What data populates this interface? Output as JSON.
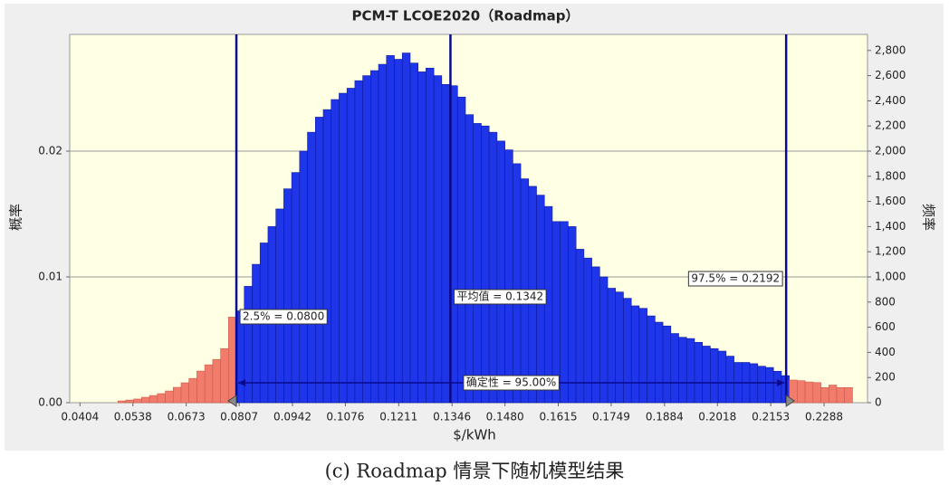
{
  "chart_data": {
    "type": "histogram",
    "title": "PCM-T LCOE2020（Roadmap）",
    "x_label": "$/kWh",
    "y_label": "概率",
    "y2_label": "频率",
    "caption": "(c) Roadmap 情景下随机模型结果",
    "axis": "y2",
    "bins": [
      0.05,
      0.052,
      0.054,
      0.056,
      0.058,
      0.06,
      0.062,
      0.064,
      0.066,
      0.068,
      0.07,
      0.072,
      0.074,
      0.076,
      0.078,
      0.08,
      0.082,
      0.084,
      0.086,
      0.088,
      0.09,
      0.092,
      0.094,
      0.096,
      0.098,
      0.1,
      0.102,
      0.104,
      0.106,
      0.108,
      0.11,
      0.112,
      0.114,
      0.116,
      0.118,
      0.12,
      0.122,
      0.124,
      0.126,
      0.128,
      0.13,
      0.132,
      0.134,
      0.136,
      0.138,
      0.14,
      0.142,
      0.144,
      0.146,
      0.148,
      0.15,
      0.152,
      0.154,
      0.156,
      0.158,
      0.16,
      0.162,
      0.164,
      0.166,
      0.168,
      0.17,
      0.172,
      0.174,
      0.176,
      0.178,
      0.18,
      0.182,
      0.184,
      0.186,
      0.188,
      0.19,
      0.192,
      0.194,
      0.196,
      0.198,
      0.2,
      0.202,
      0.204,
      0.206,
      0.208,
      0.21,
      0.212,
      0.214,
      0.216,
      0.218,
      0.22,
      0.222,
      0.224,
      0.226,
      0.228,
      0.23,
      0.232,
      0.234,
      0.236
    ],
    "values": [
      14,
      21,
      29,
      43,
      57,
      72,
      93,
      122,
      158,
      193,
      251,
      301,
      344,
      430,
      680,
      730,
      925,
      1100,
      1270,
      1400,
      1540,
      1700,
      1830,
      2000,
      2150,
      2270,
      2330,
      2410,
      2460,
      2500,
      2560,
      2600,
      2640,
      2690,
      2760,
      2730,
      2780,
      2700,
      2630,
      2660,
      2600,
      2530,
      2520,
      2430,
      2290,
      2220,
      2200,
      2150,
      2080,
      2010,
      1900,
      1780,
      1720,
      1650,
      1560,
      1440,
      1440,
      1400,
      1220,
      1150,
      1080,
      1000,
      910,
      880,
      830,
      770,
      750,
      690,
      640,
      610,
      550,
      520,
      510,
      480,
      450,
      430,
      410,
      370,
      320,
      320,
      310,
      290,
      280,
      250,
      215,
      180,
      175,
      165,
      160,
      120,
      140,
      120,
      120
    ],
    "color_in": "#1f35ea",
    "color_out": "#f27c6c",
    "marker_color": "#0a0a8c",
    "markers": [
      {
        "value": 0.08,
        "label": "2.5% = 0.0800"
      },
      {
        "value": 0.1342,
        "label": "平均值 = 0.1342"
      },
      {
        "value": 0.2192,
        "label": "97.5% = 0.2192"
      }
    ],
    "certainty_label": "确定性 = 95.00%",
    "xlim": [
      0.0378,
      0.2398
    ],
    "xticks": [
      0.0404,
      0.0538,
      0.0673,
      0.0807,
      0.0942,
      0.1076,
      0.1211,
      0.1346,
      {
        "value": 0.148,
        "label": "0.1480"
      },
      0.1615,
      0.1749,
      0.1884,
      0.2018,
      0.2153,
      0.2288
    ],
    "ylim": [
      0,
      0.02928
    ],
    "yticks": [
      {
        "value": 0,
        "label": "0.00"
      },
      0.01,
      0.02
    ],
    "y2lim": [
      0,
      2928
    ],
    "y2ticks": [
      0,
      200,
      400,
      600,
      800,
      {
        "value": 1000,
        "label": "1,000"
      },
      {
        "value": 1200,
        "label": "1,200"
      },
      {
        "value": 1400,
        "label": "1,400"
      },
      {
        "value": 1600,
        "label": "1,600"
      },
      {
        "value": 1800,
        "label": "1,800"
      },
      {
        "value": 2000,
        "label": "2,000"
      },
      {
        "value": 2200,
        "label": "2,200"
      },
      {
        "value": 2400,
        "label": "2,400"
      },
      {
        "value": 2600,
        "label": "2,600"
      },
      {
        "value": 2800,
        "label": "2,800"
      }
    ],
    "grid": true
  }
}
